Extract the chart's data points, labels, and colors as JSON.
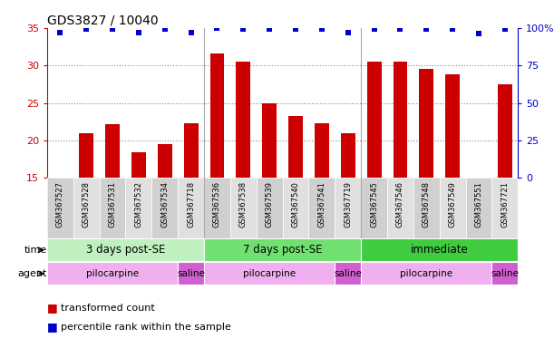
{
  "title": "GDS3827 / 10040",
  "samples": [
    "GSM367527",
    "GSM367528",
    "GSM367531",
    "GSM367532",
    "GSM367534",
    "GSM367718",
    "GSM367536",
    "GSM367538",
    "GSM367539",
    "GSM367540",
    "GSM367541",
    "GSM367719",
    "GSM367545",
    "GSM367546",
    "GSM367548",
    "GSM367549",
    "GSM367551",
    "GSM367721"
  ],
  "bar_values": [
    15.1,
    21.0,
    22.2,
    18.4,
    19.5,
    22.3,
    31.6,
    30.5,
    25.0,
    23.3,
    22.3,
    21.0,
    30.5,
    30.5,
    29.5,
    28.8,
    15.1,
    27.5
  ],
  "dot_pct": [
    97,
    99,
    99,
    97,
    99,
    97,
    100,
    99,
    99,
    99,
    99,
    97,
    99,
    99,
    99,
    99,
    96,
    99
  ],
  "bar_color": "#cc0000",
  "dot_color": "#0000cc",
  "ylim_left": [
    15,
    35
  ],
  "ylim_right": [
    0,
    100
  ],
  "yticks_left": [
    15,
    20,
    25,
    30,
    35
  ],
  "yticks_right": [
    0,
    25,
    50,
    75,
    100
  ],
  "ytick_labels_right": [
    "0",
    "25",
    "50",
    "75",
    "100%"
  ],
  "time_groups": [
    {
      "label": "3 days post-SE",
      "start": 0,
      "end": 5,
      "color": "#c0f0c0"
    },
    {
      "label": "7 days post-SE",
      "start": 6,
      "end": 11,
      "color": "#70e070"
    },
    {
      "label": "immediate",
      "start": 12,
      "end": 17,
      "color": "#40cc40"
    }
  ],
  "agent_groups": [
    {
      "label": "pilocarpine",
      "start": 0,
      "end": 4,
      "color": "#f0b0f0"
    },
    {
      "label": "saline",
      "start": 5,
      "end": 5,
      "color": "#d060d0"
    },
    {
      "label": "pilocarpine",
      "start": 6,
      "end": 10,
      "color": "#f0b0f0"
    },
    {
      "label": "saline",
      "start": 11,
      "end": 11,
      "color": "#d060d0"
    },
    {
      "label": "pilocarpine",
      "start": 12,
      "end": 16,
      "color": "#f0b0f0"
    },
    {
      "label": "saline",
      "start": 17,
      "end": 17,
      "color": "#d060d0"
    }
  ],
  "time_label": "time",
  "agent_label": "agent",
  "legend_bar": "transformed count",
  "legend_dot": "percentile rank within the sample",
  "gridline_color": "#888888",
  "background_color": "#ffffff",
  "label_bg_color": "#d8d8d8"
}
